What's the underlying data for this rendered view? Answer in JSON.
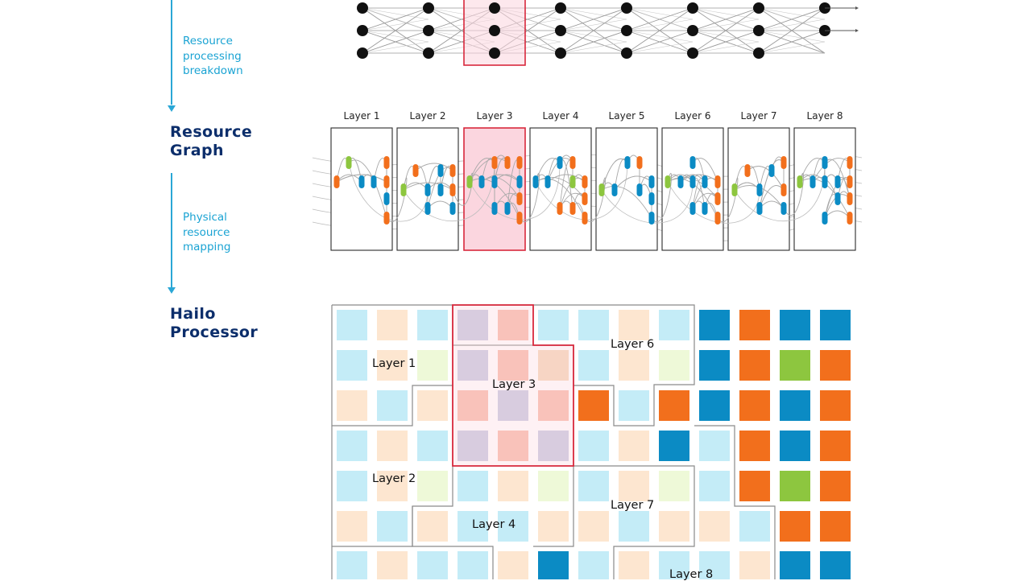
{
  "flow": {
    "step1": "Resource\nprocessing\nbreakdown",
    "stage2": "Resource\nGraph",
    "step2": "Physical\nresource\nmapping",
    "stage3": "Hailo\nProcessor"
  },
  "resource_graph": {
    "layers": [
      "Layer 1",
      "Layer 2",
      "Layer 3",
      "Layer 4",
      "Layer 5",
      "Layer 6",
      "Layer 7",
      "Layer 8"
    ],
    "highlighted_layer": "Layer 3"
  },
  "processor": {
    "region_labels": [
      "Layer 1",
      "Layer 2",
      "Layer 3",
      "Layer 4",
      "Layer 6",
      "Layer 7",
      "Layer 8"
    ],
    "highlighted_region": "Layer 3"
  },
  "colors": {
    "accent_blue": "#2aa7d6",
    "title_navy": "#0c2e6b",
    "highlight_red": "#d8283c",
    "highlight_fill": "#fbd6df",
    "node_blue": "#0b8bc4",
    "node_orange": "#f26f1c",
    "node_green": "#8dc63f",
    "light_blue": "#c4ecf7",
    "light_peach": "#fde6d0",
    "light_green": "#eef9d8"
  }
}
